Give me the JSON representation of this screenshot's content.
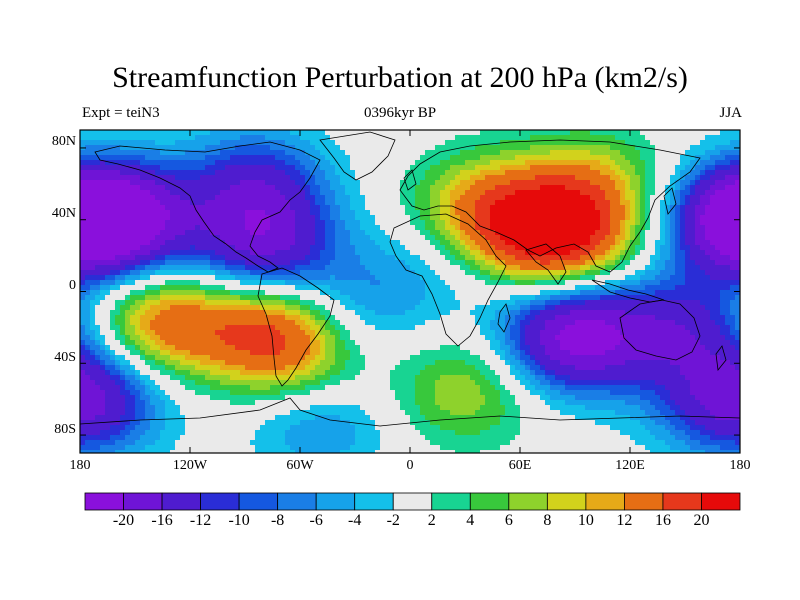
{
  "title": "Streamfunction Perturbation at 200 hPa (km2/s)",
  "left_label": "Expt = teiN3",
  "center_label": "0396kyr BP",
  "right_label": "JJA",
  "lat_ticks": [
    "80N",
    "40N",
    "0",
    "40S",
    "80S"
  ],
  "lon_ticks": [
    "180",
    "120W",
    "60W",
    "0",
    "60E",
    "120E",
    "180"
  ],
  "colorbar": {
    "labels": [
      "-20",
      "-16",
      "-12",
      "-10",
      "-8",
      "-6",
      "-4",
      "-2",
      "2",
      "4",
      "6",
      "8",
      "10",
      "12",
      "16",
      "20"
    ],
    "colors": [
      "#8a10dc",
      "#6f14d6",
      "#4f1ccf",
      "#2a2dd6",
      "#1558e0",
      "#1a7ee6",
      "#16a2ea",
      "#14c0ea",
      "#eaeaea",
      "#18d492",
      "#38c83c",
      "#8ed22c",
      "#d2d21c",
      "#e6aa18",
      "#e66e14",
      "#e6381c",
      "#e60a0a"
    ]
  },
  "chart_data": {
    "type": "heatmap",
    "title": "Streamfunction Perturbation at 200 hPa (km2/s)",
    "subtitle": "0396kyr BP",
    "lon_range": [
      -180,
      180
    ],
    "lat_range": [
      -90,
      90
    ],
    "contour_levels": [
      -20,
      -16,
      -12,
      -10,
      -8,
      -6,
      -4,
      -2,
      2,
      4,
      6,
      8,
      10,
      12,
      16,
      20
    ],
    "features": [
      {
        "lon": 80,
        "lat": 32,
        "peak": 22
      },
      {
        "lon": 40,
        "lat": 45,
        "peak": 12
      },
      {
        "lon": 100,
        "lat": 60,
        "peak": 8
      },
      {
        "lon": -135,
        "lat": -18,
        "peak": 14
      },
      {
        "lon": -75,
        "lat": -22,
        "peak": 16
      },
      {
        "lon": -55,
        "lat": -45,
        "peak": 6
      },
      {
        "lon": 30,
        "lat": -55,
        "peak": 8
      },
      {
        "lon": -160,
        "lat": 40,
        "peak": -20
      },
      {
        "lon": 180,
        "lat": 40,
        "peak": -18
      },
      {
        "lon": -80,
        "lat": 25,
        "peak": -16
      },
      {
        "lon": -85,
        "lat": 60,
        "peak": -12
      },
      {
        "lon": -50,
        "lat": -70,
        "peak": -8
      },
      {
        "lon": 90,
        "lat": -25,
        "peak": -22
      },
      {
        "lon": 150,
        "lat": -20,
        "peak": -12
      },
      {
        "lon": -170,
        "lat": -60,
        "peak": -10
      },
      {
        "lon": 170,
        "lat": -60,
        "peak": -10
      },
      {
        "lon": 10,
        "lat": 15,
        "peak": -4
      },
      {
        "lon": -30,
        "lat": -10,
        "peak": -6
      }
    ]
  }
}
